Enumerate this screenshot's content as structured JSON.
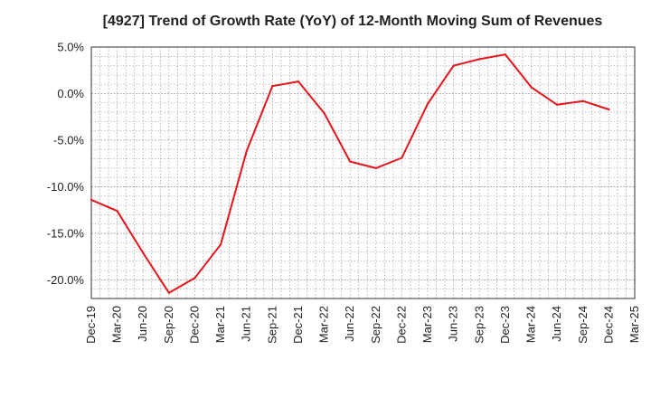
{
  "chart_data": {
    "type": "line",
    "title": "[4927]  Trend of Growth Rate (YoY) of 12-Month Moving Sum of Revenues",
    "xlabel": "",
    "ylabel": "",
    "x_tick_labels": [
      "Dec-19",
      "Mar-20",
      "Jun-20",
      "Sep-20",
      "Dec-20",
      "Mar-21",
      "Jun-21",
      "Sep-21",
      "Dec-21",
      "Mar-22",
      "Jun-22",
      "Sep-22",
      "Dec-22",
      "Mar-23",
      "Jun-23",
      "Sep-23",
      "Dec-23",
      "Mar-24",
      "Jun-24",
      "Sep-24",
      "Dec-24",
      "Mar-25"
    ],
    "y_ticks": [
      5,
      0,
      -5,
      -10,
      -15,
      -20
    ],
    "y_tick_labels": [
      "5.0%",
      "0.0%",
      "-5.0%",
      "-10.0%",
      "-15.0%",
      "-20.0%"
    ],
    "ylim": [
      -22,
      5
    ],
    "grid": true,
    "series": [
      {
        "color": "#e8141c",
        "x": [
          "Dec-19",
          "Mar-20",
          "Jun-20",
          "Sep-20",
          "Dec-20",
          "Mar-21",
          "Jun-21",
          "Sep-21",
          "Dec-21",
          "Mar-22",
          "Jun-22",
          "Sep-22",
          "Dec-22",
          "Mar-23",
          "Jun-23",
          "Sep-23",
          "Dec-23",
          "Mar-24",
          "Jun-24",
          "Sep-24",
          "Dec-24"
        ],
        "values": [
          -11.4,
          -12.6,
          -17.1,
          -21.4,
          -19.8,
          -16.2,
          -6.2,
          0.8,
          1.3,
          -2.1,
          -7.3,
          -8.0,
          -6.9,
          -1.1,
          3.0,
          3.7,
          4.2,
          0.7,
          -1.2,
          -0.8,
          -1.7
        ]
      }
    ]
  }
}
